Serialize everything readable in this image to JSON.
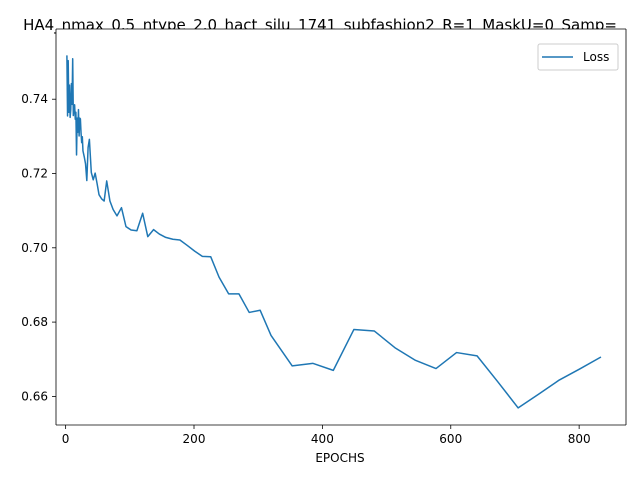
{
  "chart_data": {
    "type": "line",
    "title": "HA4_nmax_0.5_ntype_2.0_hact_silu_1741_subfashion2_R=1_MaskU=0_Samp=",
    "xlabel": "EPOCHS",
    "ylabel": "",
    "xlim": [
      -15,
      873
    ],
    "ylim": [
      0.6523,
      0.7589
    ],
    "xticks": [
      0,
      200,
      400,
      600,
      800
    ],
    "xtick_labels": [
      "0",
      "200",
      "400",
      "600",
      "800"
    ],
    "yticks": [
      0.66,
      0.68,
      0.7,
      0.72,
      0.74
    ],
    "ytick_labels": [
      "0.66",
      "0.68",
      "0.70",
      "0.72",
      "0.74"
    ],
    "grid": false,
    "legend": {
      "position": "top-right",
      "entries": [
        "Loss"
      ]
    },
    "series": [
      {
        "name": "Loss",
        "color": "#1f77b4",
        "x": [
          2,
          3,
          4,
          5,
          6,
          7,
          8,
          9,
          10,
          11,
          12,
          13,
          14,
          15,
          16,
          17,
          18,
          19,
          20,
          21,
          22,
          23,
          24,
          25,
          26,
          27,
          29,
          31,
          33,
          35,
          37,
          40,
          43,
          46,
          49,
          52,
          56,
          60,
          64,
          69,
          74,
          80,
          87,
          94,
          102,
          111,
          120,
          128,
          137,
          146,
          156,
          167,
          178,
          189,
          201,
          213,
          226,
          239,
          254,
          270,
          286,
          303,
          320,
          353,
          385,
          417,
          449,
          481,
          513,
          545,
          577,
          609,
          641,
          673,
          705,
          737,
          769,
          801,
          833
        ],
        "values": [
          0.7516,
          0.7355,
          0.7504,
          0.7365,
          0.7438,
          0.7351,
          0.7372,
          0.7442,
          0.7386,
          0.7509,
          0.7356,
          0.738,
          0.7385,
          0.7346,
          0.7365,
          0.725,
          0.7349,
          0.7311,
          0.7372,
          0.7301,
          0.7349,
          0.7347,
          0.731,
          0.7283,
          0.7299,
          0.7261,
          0.7245,
          0.7226,
          0.7181,
          0.727,
          0.7292,
          0.7203,
          0.7183,
          0.7201,
          0.7173,
          0.7143,
          0.7132,
          0.7126,
          0.718,
          0.7126,
          0.7103,
          0.7086,
          0.7108,
          0.7057,
          0.7048,
          0.7046,
          0.7093,
          0.703,
          0.7049,
          0.7037,
          0.7028,
          0.7023,
          0.7021,
          0.7007,
          0.6991,
          0.6977,
          0.6976,
          0.6921,
          0.6876,
          0.6876,
          0.6826,
          0.6832,
          0.6764,
          0.6682,
          0.6689,
          0.667,
          0.678,
          0.6776,
          0.6731,
          0.6697,
          0.6675,
          0.6718,
          0.6709,
          0.664,
          0.6569,
          0.6606,
          0.6644,
          0.6674,
          0.6705
        ]
      }
    ]
  }
}
